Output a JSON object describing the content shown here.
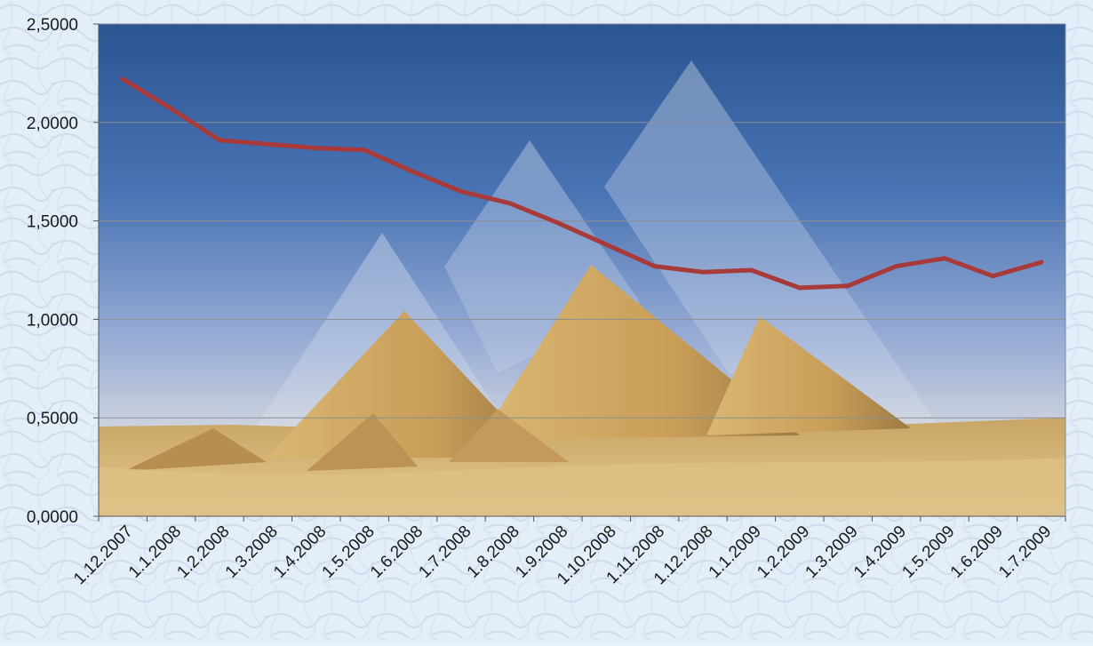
{
  "chart_data": {
    "type": "line",
    "categories": [
      "1.12.2007",
      "1.1.2008",
      "1.2.2008",
      "1.3.2008",
      "1.4.2008",
      "1.5.2008",
      "1.6.2008",
      "1.7.2008",
      "1.8.2008",
      "1.9.2008",
      "1.10.2008",
      "1.11.2008",
      "1.12.2008",
      "1.1.2009",
      "1.2.2009",
      "1.3.2009",
      "1.4.2009",
      "1.5.2009",
      "1.6.2009",
      "1.7.2009"
    ],
    "series": [
      {
        "values": [
          2.22,
          2.07,
          1.91,
          1.89,
          1.87,
          1.86,
          1.75,
          1.65,
          1.59,
          1.49,
          1.38,
          1.27,
          1.24,
          1.25,
          1.16,
          1.17,
          1.27,
          1.31,
          1.22,
          1.29
        ]
      }
    ],
    "ylim": [
      0,
      2.5
    ],
    "yticks": [
      "0,0000",
      "0,5000",
      "1,0000",
      "1,5000",
      "2,0000",
      "2,5000"
    ],
    "grid": true,
    "line_color": "#a83a3a",
    "plot_background": "photo of pyramids under blue sky"
  }
}
